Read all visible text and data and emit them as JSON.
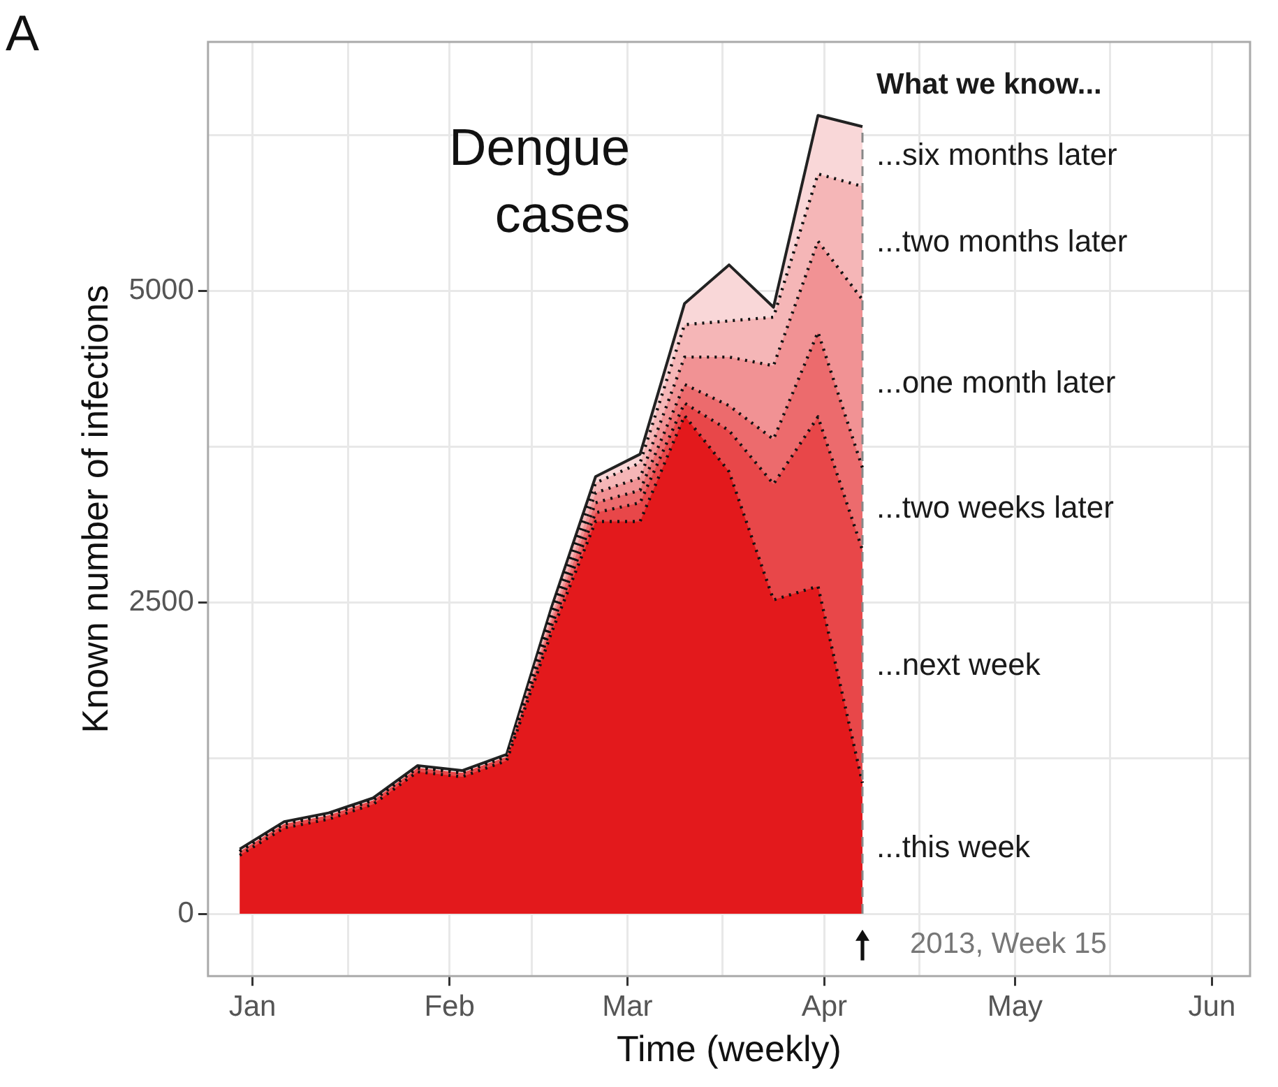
{
  "chart_data": {
    "type": "area",
    "title": "Dengue cases",
    "xlabel": "Time (weekly)",
    "ylabel": "Known number of infections",
    "legend_title": "What we know...",
    "annotations": [
      "A",
      {
        "text": "2013, Week 15",
        "x": "2013-04-07",
        "y": -250
      }
    ],
    "x": [
      "2012-12-30",
      "2013-01-06",
      "2013-01-13",
      "2013-01-20",
      "2013-01-27",
      "2013-02-03",
      "2013-02-10",
      "2013-02-17",
      "2013-02-24",
      "2013-03-03",
      "2013-03-10",
      "2013-03-17",
      "2013-03-24",
      "2013-03-31",
      "2013-04-07"
    ],
    "series": [
      {
        "name": "...six months later",
        "color": "#f9d7d8",
        "line_style": "solid",
        "values": [
          520,
          740,
          810,
          930,
          1190,
          1150,
          1280,
          2450,
          3510,
          3690,
          4900,
          5210,
          4870,
          6410,
          6320
        ]
      },
      {
        "name": "...two months later",
        "color": "#f5b6b7",
        "line_style": "dotted",
        "values": [
          500,
          720,
          790,
          910,
          1170,
          1130,
          1260,
          2420,
          3460,
          3620,
          4730,
          4760,
          4790,
          5940,
          5840
        ]
      },
      {
        "name": "...one month later",
        "color": "#f19294",
        "line_style": "dotted",
        "values": [
          500,
          720,
          790,
          910,
          1170,
          1130,
          1260,
          2380,
          3380,
          3500,
          4470,
          4470,
          4400,
          5400,
          4930
        ]
      },
      {
        "name": "...two weeks later",
        "color": "#ec6b6d",
        "line_style": "dotted",
        "values": [
          500,
          720,
          790,
          910,
          1170,
          1130,
          1260,
          2340,
          3300,
          3400,
          4250,
          4080,
          3810,
          4670,
          3580
        ]
      },
      {
        "name": "...next week",
        "color": "#e84749",
        "line_style": "dotted",
        "values": [
          500,
          720,
          790,
          910,
          1170,
          1130,
          1260,
          2300,
          3220,
          3300,
          4100,
          3880,
          3450,
          3990,
          2920
        ]
      },
      {
        "name": "...this week",
        "color": "#e3191c",
        "line_style": "dotted",
        "values": [
          470,
          690,
          760,
          880,
          1140,
          1100,
          1230,
          2250,
          3150,
          3150,
          4000,
          3550,
          2520,
          2630,
          1050
        ]
      }
    ],
    "xlim": [
      "2012-12-25",
      "2013-06-07"
    ],
    "xticks": [
      {
        "value": "2013-01-01",
        "label": "Jan"
      },
      {
        "value": "2013-01-16",
        "label": null
      },
      {
        "value": "2013-02-01",
        "label": "Feb"
      },
      {
        "value": "2013-02-14",
        "label": null
      },
      {
        "value": "2013-03-01",
        "label": "Mar"
      },
      {
        "value": "2013-03-16",
        "label": null
      },
      {
        "value": "2013-04-01",
        "label": "Apr"
      },
      {
        "value": "2013-04-16",
        "label": null
      },
      {
        "value": "2013-05-01",
        "label": "May"
      },
      {
        "value": "2013-05-16",
        "label": null
      },
      {
        "value": "2013-06-01",
        "label": "Jun"
      }
    ],
    "ylim": [
      -500,
      7000
    ],
    "yticks": [
      0,
      {
        "value": 1250,
        "label": null
      },
      2500,
      {
        "value": 3750,
        "label": null
      },
      5000,
      {
        "value": 6250,
        "label": null
      }
    ],
    "ref_lines": [
      {
        "axis": "x",
        "value": "2013-04-07",
        "color": "#888888",
        "line_style": "dashed"
      }
    ],
    "grid": true,
    "legend": false,
    "marker": "none"
  }
}
